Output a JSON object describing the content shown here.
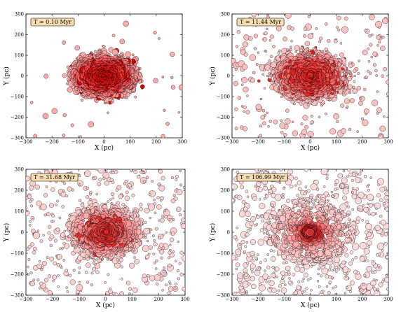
{
  "chart_data": [
    {
      "type": "scatter",
      "time_label": "T = 0.10 Myr",
      "xlabel": "X (pc)",
      "ylabel": "Y (pc)",
      "xlim": [
        -300,
        300
      ],
      "ylim": [
        -300,
        300
      ],
      "xticks": [
        -300,
        -200,
        -100,
        0,
        100,
        200,
        300
      ],
      "yticks": [
        -300,
        -200,
        -100,
        0,
        100,
        200,
        300
      ],
      "grid": false,
      "cluster": {
        "radius_x": 135,
        "radius_y": 110,
        "core_x": 75,
        "core_y": 60,
        "n": 1500,
        "halo": 0.02
      },
      "colors": {
        "center": "#cc0000",
        "mid": "#ff3333",
        "edge": "#ffaaaa"
      },
      "marker_size_range": [
        1.5,
        4.5
      ]
    },
    {
      "type": "scatter",
      "time_label": "T = 11.44 Myr",
      "xlabel": "X (pc)",
      "ylabel": "Y (pc)",
      "xlim": [
        -300,
        300
      ],
      "ylim": [
        -300,
        300
      ],
      "xticks": [
        -300,
        -200,
        -100,
        0,
        100,
        200,
        300
      ],
      "yticks": [
        -300,
        -200,
        -100,
        0,
        100,
        200,
        300
      ],
      "grid": false,
      "cluster": {
        "radius_x": 150,
        "radius_y": 125,
        "core_x": 75,
        "core_y": 65,
        "n": 1500,
        "halo": 0.18
      },
      "colors": {
        "center": "#e01a1a",
        "mid": "#ff5a5a",
        "edge": "#ffc0c0"
      },
      "marker_size_range": [
        1.5,
        4.8
      ]
    },
    {
      "type": "scatter",
      "time_label": "T = 31.68 Myr",
      "xlabel": "X (pc)",
      "ylabel": "Y (pc)",
      "xlim": [
        -300,
        300
      ],
      "ylim": [
        -300,
        300
      ],
      "xticks": [
        -300,
        -200,
        -100,
        0,
        100,
        200,
        300
      ],
      "yticks": [
        -300,
        -200,
        -100,
        0,
        100,
        200,
        300
      ],
      "grid": false,
      "cluster": {
        "radius_x": 150,
        "radius_y": 130,
        "core_x": 55,
        "core_y": 45,
        "n": 1500,
        "halo": 0.3
      },
      "colors": {
        "center": "#e02020",
        "mid": "#ff8080",
        "edge": "#ffd0d0"
      },
      "marker_size_range": [
        1.5,
        4.8
      ]
    },
    {
      "type": "scatter",
      "time_label": "T = 106.99 Myr",
      "xlabel": "X (pc)",
      "ylabel": "Y (pc)",
      "xlim": [
        -300,
        300
      ],
      "ylim": [
        -300,
        300
      ],
      "xticks": [
        -300,
        -200,
        -100,
        0,
        100,
        200,
        300
      ],
      "yticks": [
        -300,
        -200,
        -100,
        0,
        100,
        200,
        300
      ],
      "grid": false,
      "cluster": {
        "radius_x": 170,
        "radius_y": 150,
        "core_x": 20,
        "core_y": 18,
        "n": 1700,
        "halo": 0.4
      },
      "colors": {
        "center": "#e01010",
        "mid": "#ffaaaa",
        "edge": "#ffdada"
      },
      "marker_size_range": [
        1.5,
        5.0
      ]
    }
  ]
}
